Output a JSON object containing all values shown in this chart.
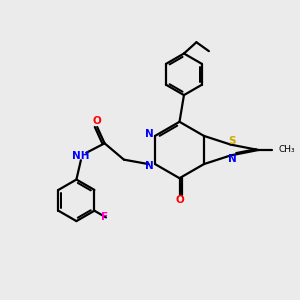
{
  "background_color": "#ebebeb",
  "atom_colors": {
    "N": "#0000ff",
    "O": "#ff0000",
    "S": "#ccaa00",
    "F": "#ff00cc",
    "C": "#000000"
  },
  "line_color": "#000000",
  "line_width": 1.6
}
